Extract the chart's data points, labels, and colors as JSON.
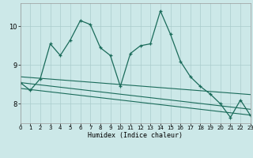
{
  "xlabel": "Humidex (Indice chaleur)",
  "bg_color": "#cce8e8",
  "grid_color": "#aacccc",
  "line_color": "#1a6b5a",
  "x_min": 0,
  "x_max": 23,
  "y_min": 7.5,
  "y_max": 10.6,
  "yticks": [
    8,
    9,
    10
  ],
  "xticks": [
    0,
    1,
    2,
    3,
    4,
    5,
    6,
    7,
    8,
    9,
    10,
    11,
    12,
    13,
    14,
    15,
    16,
    17,
    18,
    19,
    20,
    21,
    22,
    23
  ],
  "series1_x": [
    0,
    1,
    2,
    3,
    4,
    5,
    6,
    7,
    8,
    9,
    10,
    11,
    12,
    13,
    14,
    15,
    16,
    17,
    18,
    19,
    20,
    21,
    22,
    23
  ],
  "series1_y": [
    8.55,
    8.35,
    8.65,
    9.55,
    9.25,
    9.65,
    10.15,
    10.05,
    9.45,
    9.25,
    8.45,
    9.3,
    9.5,
    9.55,
    10.4,
    9.8,
    9.1,
    8.7,
    8.45,
    8.25,
    8.0,
    7.65,
    8.1,
    7.7
  ],
  "series2_x": [
    0,
    1,
    2,
    3,
    4,
    5,
    6,
    7,
    8,
    9,
    10,
    11,
    12,
    13,
    14,
    15,
    16,
    17,
    18,
    19,
    20,
    21,
    22,
    23
  ],
  "series2_y": [
    8.7,
    8.68,
    8.66,
    8.64,
    8.62,
    8.6,
    8.58,
    8.56,
    8.54,
    8.52,
    8.5,
    8.48,
    8.46,
    8.44,
    8.42,
    8.4,
    8.38,
    8.36,
    8.34,
    8.32,
    8.3,
    8.28,
    8.26,
    8.24
  ],
  "series3_x": [
    0,
    1,
    2,
    3,
    4,
    5,
    6,
    7,
    8,
    9,
    10,
    11,
    12,
    13,
    14,
    15,
    16,
    17,
    18,
    19,
    20,
    21,
    22,
    23
  ],
  "series3_y": [
    8.55,
    8.52,
    8.49,
    8.46,
    8.43,
    8.4,
    8.37,
    8.34,
    8.31,
    8.28,
    8.25,
    8.22,
    8.19,
    8.16,
    8.13,
    8.1,
    8.07,
    8.04,
    8.01,
    7.98,
    7.95,
    7.92,
    7.89,
    7.86
  ],
  "series4_x": [
    0,
    1,
    2,
    3,
    4,
    5,
    6,
    7,
    8,
    9,
    10,
    11,
    12,
    13,
    14,
    15,
    16,
    17,
    18,
    19,
    20,
    21,
    22,
    23
  ],
  "series4_y": [
    8.4,
    8.37,
    8.34,
    8.31,
    8.28,
    8.25,
    8.22,
    8.19,
    8.16,
    8.13,
    8.1,
    8.07,
    8.04,
    8.01,
    7.98,
    7.95,
    7.92,
    7.89,
    7.86,
    7.83,
    7.8,
    7.77,
    7.74,
    7.71
  ]
}
